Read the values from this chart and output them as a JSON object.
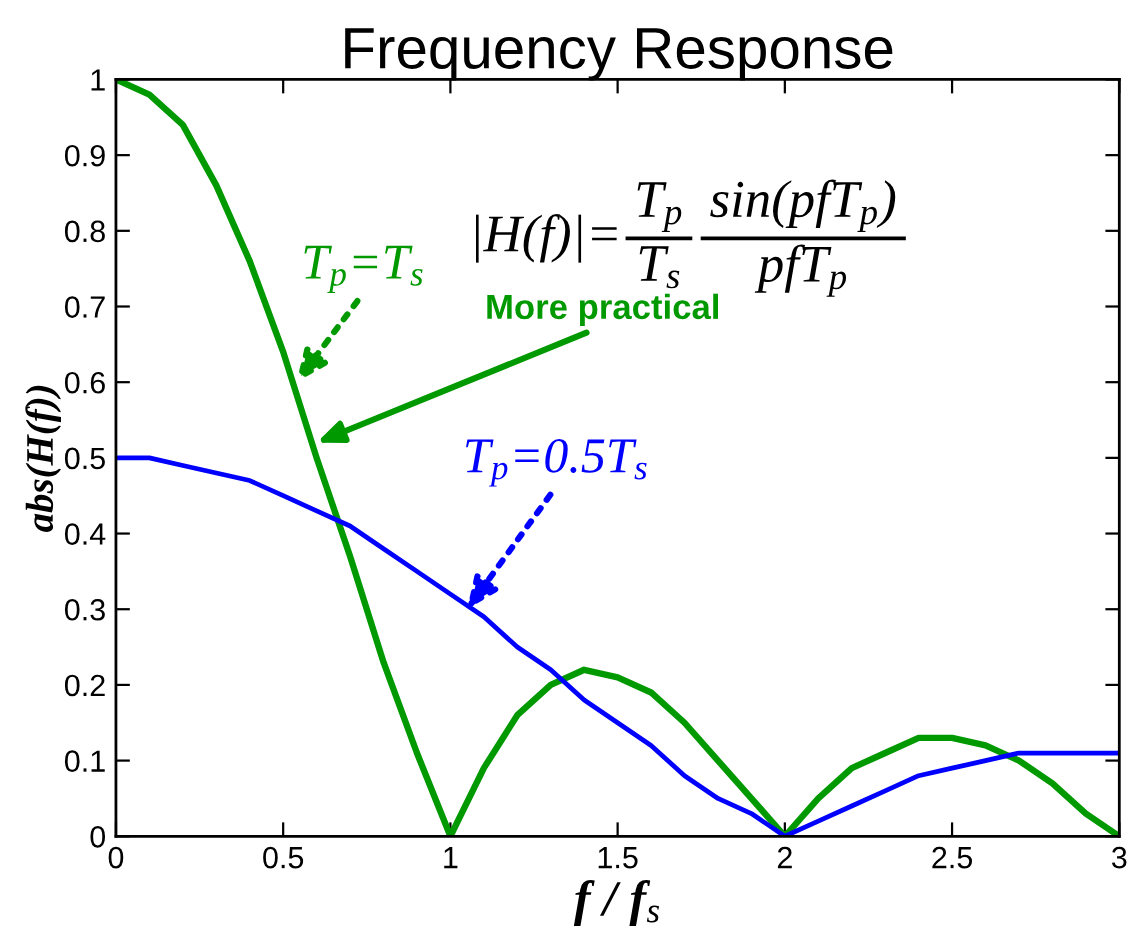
{
  "chart_data": {
    "type": "line",
    "title": "Frequency Response",
    "xlabel": "f / f$_{s}$",
    "ylabel": "abs(H(f))",
    "x": [
      0,
      0.1,
      0.2,
      0.3,
      0.4,
      0.5,
      0.6,
      0.7,
      0.8,
      0.9,
      1,
      1.1,
      1.2,
      1.3,
      1.4,
      1.5,
      1.6,
      1.7,
      1.8,
      1.9,
      2,
      2.1,
      2.2,
      2.3,
      2.4,
      2.5,
      2.6,
      2.7,
      2.8,
      2.9,
      3
    ],
    "series": [
      {
        "color": "#009900",
        "values": [
          1,
          0.98,
          0.94,
          0.86,
          0.76,
          0.64,
          0.5,
          0.37,
          0.23,
          0.11,
          0,
          0.09,
          0.16,
          0.2,
          0.22,
          0.21,
          0.19,
          0.15,
          0.1,
          0.05,
          0,
          0.05,
          0.09,
          0.11,
          0.13,
          0.13,
          0.12,
          0.1,
          0.07,
          0.03,
          0
        ]
      },
      {
        "color": "#0000ff",
        "values": [
          0.5,
          0.5,
          0.49,
          0.48,
          0.47,
          0.45,
          0.43,
          0.41,
          0.38,
          0.35,
          0.32,
          0.29,
          0.25,
          0.22,
          0.18,
          0.15,
          0.12,
          0.08,
          0.05,
          0.03,
          0,
          0.02,
          0.04,
          0.06,
          0.08,
          0.09,
          0.1,
          0.11,
          0.11,
          0.11,
          0.11
        ]
      }
    ],
    "xlim": [
      0,
      3
    ],
    "ylim": [
      0,
      1
    ],
    "xticks": [
      0,
      0.5,
      1,
      1.5,
      2,
      2.5,
      3
    ],
    "yticks": [
      0,
      0.1,
      0.2,
      0.3,
      0.4,
      0.5,
      0.6,
      0.7,
      0.8,
      0.9,
      1
    ],
    "annotations": [
      "|H(f)|=",
      "T$_{p}$",
      "T$_{s}$",
      "sin(pfT$_{p}$)",
      "pfT$_{p}$",
      {
        "text": "T$_{p}$=T$_{s}$",
        "x": 0.54,
        "y": 0.6
      },
      {
        "text": "More practical",
        "x": 0.6,
        "y": 0.52
      },
      {
        "text": "T$_{p}$=0.5T$_{s}$",
        "x": 1.05,
        "y": 0.3
      }
    ]
  }
}
